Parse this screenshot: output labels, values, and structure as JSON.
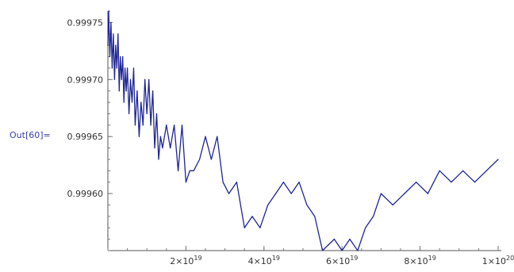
{
  "output_label": "Out[60]=",
  "chart_data": {
    "type": "line",
    "title": "",
    "xlabel": "",
    "ylabel": "",
    "xlim": [
      0,
      1e+20
    ],
    "ylim": [
      0.99955,
      0.99976
    ],
    "axes_origin": [
      0,
      0.99955
    ],
    "grid": false,
    "x_ticks": [
      {
        "value": 2e+19,
        "mantissa": "2",
        "exponent": "19"
      },
      {
        "value": 4e+19,
        "mantissa": "4",
        "exponent": "19"
      },
      {
        "value": 6e+19,
        "mantissa": "6",
        "exponent": "19"
      },
      {
        "value": 8e+19,
        "mantissa": "8",
        "exponent": "19"
      },
      {
        "value": 1e+20,
        "mantissa": "1",
        "exponent": "20"
      }
    ],
    "y_ticks": [
      {
        "value": 0.9996,
        "label": "0.99960"
      },
      {
        "value": 0.99965,
        "label": "0.99965"
      },
      {
        "value": 0.9997,
        "label": "0.99970"
      },
      {
        "value": 0.99975,
        "label": "0.99975"
      }
    ],
    "series": [
      {
        "color": "#1d2596",
        "x": [
          0,
          2e+17,
          5e+17,
          8e+17,
          1.1e+18,
          1.4e+18,
          1.7e+18,
          2e+18,
          2.3e+18,
          2.6e+18,
          2.9e+18,
          3.2e+18,
          3.5e+18,
          3.8e+18,
          4.1e+18,
          4.4e+18,
          4.7e+18,
          5e+18,
          5.4e+18,
          5.8e+18,
          6.2e+18,
          6.6e+18,
          7e+18,
          7.5e+18,
          8e+18,
          8.5e+18,
          9e+18,
          9.5e+18,
          1e+19,
          1.05e+19,
          1.1e+19,
          1.15e+19,
          1.2e+19,
          1.25e+19,
          1.3e+19,
          1.35e+19,
          1.4e+19,
          1.5e+19,
          1.6e+19,
          1.7e+19,
          1.8e+19,
          1.9e+19,
          2e+19,
          2.1e+19,
          2.2e+19,
          2.35e+19,
          2.5e+19,
          2.65e+19,
          2.8e+19,
          2.95e+19,
          3.1e+19,
          3.3e+19,
          3.5e+19,
          3.7e+19,
          3.9e+19,
          4.1e+19,
          4.3e+19,
          4.5e+19,
          4.7e+19,
          4.9e+19,
          5.1e+19,
          5.3e+19,
          5.5e+19,
          5.8e+19,
          6e+19,
          6.2e+19,
          6.4e+19,
          6.6e+19,
          6.8e+19,
          7e+19,
          7.3e+19,
          7.6e+19,
          7.9e+19,
          8.2e+19,
          8.5e+19,
          8.8e+19,
          9.1e+19,
          9.4e+19,
          9.7e+19,
          1e+20
        ],
        "y": [
          0.99973,
          0.99976,
          0.99972,
          0.99975,
          0.99971,
          0.99974,
          0.9997,
          0.99973,
          0.99971,
          0.99974,
          0.99969,
          0.99972,
          0.9997,
          0.99972,
          0.99968,
          0.99971,
          0.99969,
          0.99971,
          0.99967,
          0.9997,
          0.99968,
          0.99971,
          0.99966,
          0.99969,
          0.99965,
          0.99968,
          0.99966,
          0.9997,
          0.99967,
          0.9997,
          0.99966,
          0.99969,
          0.99964,
          0.99967,
          0.99963,
          0.99965,
          0.99964,
          0.99966,
          0.99964,
          0.99966,
          0.99962,
          0.99966,
          0.99961,
          0.99962,
          0.99962,
          0.99963,
          0.99965,
          0.99963,
          0.99965,
          0.99961,
          0.9996,
          0.99961,
          0.99957,
          0.99958,
          0.99957,
          0.99959,
          0.9996,
          0.99961,
          0.9996,
          0.99961,
          0.99959,
          0.99958,
          0.99955,
          0.99956,
          0.99955,
          0.99956,
          0.99955,
          0.99957,
          0.99958,
          0.9996,
          0.99959,
          0.9996,
          0.99961,
          0.9996,
          0.99962,
          0.99961,
          0.99962,
          0.99961,
          0.99962,
          0.99963
        ]
      }
    ]
  }
}
